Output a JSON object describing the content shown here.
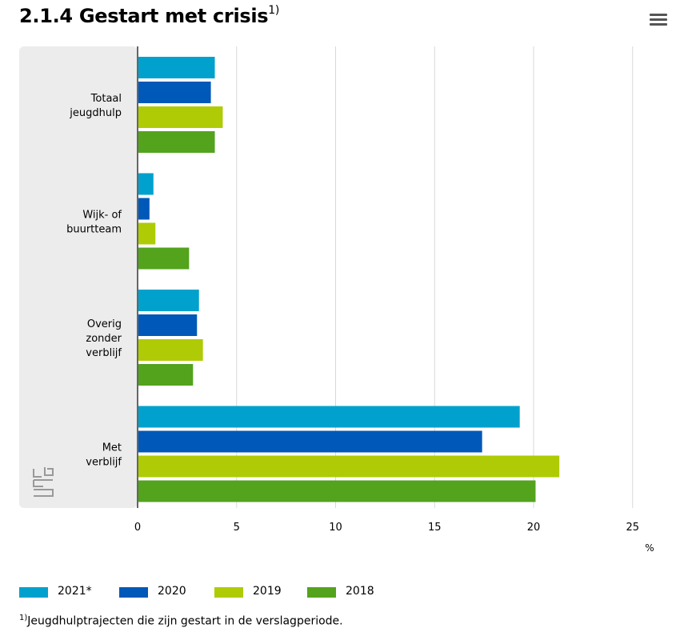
{
  "header": {
    "title": "2.1.4 Gestart met crisis",
    "title_sup": "1)"
  },
  "menu": {
    "icon": "hamburger-menu-icon"
  },
  "chart_data": {
    "type": "bar",
    "orientation": "horizontal",
    "categories": [
      "Totaal jeugdhulp",
      "Wijk- of buurtteam",
      "Overig zonder verblijf",
      "Met verblijf"
    ],
    "category_lines": [
      [
        "Totaal",
        "jeugdhulp"
      ],
      [
        "Wijk- of",
        "buurtteam"
      ],
      [
        "Overig",
        "zonder",
        "verblijf"
      ],
      [
        "Met",
        "verblijf"
      ]
    ],
    "series": [
      {
        "name": "2021*",
        "color": "#00a1cd",
        "values": [
          3.9,
          0.8,
          3.1,
          19.3
        ]
      },
      {
        "name": "2020",
        "color": "#0058b8",
        "values": [
          3.7,
          0.6,
          3.0,
          17.4
        ]
      },
      {
        "name": "2019",
        "color": "#afcb05",
        "values": [
          4.3,
          0.9,
          3.3,
          21.3
        ]
      },
      {
        "name": "2018",
        "color": "#53a31d",
        "values": [
          3.9,
          2.6,
          2.8,
          20.1
        ]
      }
    ],
    "xlim": [
      0,
      25
    ],
    "xticks": [
      0,
      5,
      10,
      15,
      20,
      25
    ],
    "xunit": "%",
    "grid": true,
    "legend_position": "bottom"
  },
  "footnote": {
    "marker": "1)",
    "text": "Jeugdhulptrajecten die zijn gestart in de verslagperiode."
  }
}
